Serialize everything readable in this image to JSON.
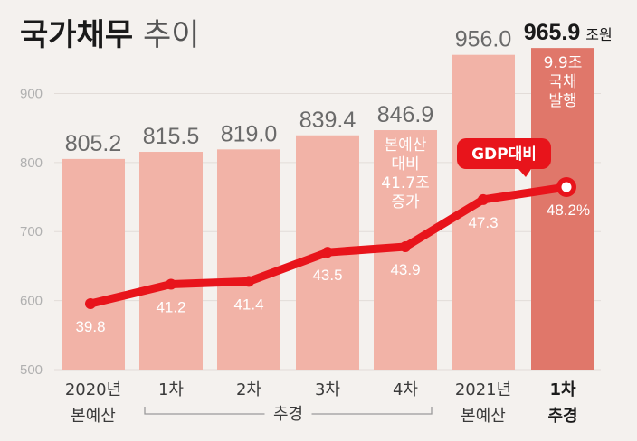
{
  "title": {
    "main": "국가채무",
    "sub": "추이"
  },
  "colors": {
    "bar": "#f2b3a7",
    "bar_highlight": "#e0776a",
    "line": "#e8141b",
    "background": "#f4f1ee"
  },
  "chart_data": {
    "type": "bar",
    "ylim": [
      500,
      970
    ],
    "yticks": [
      "500",
      "600",
      "700",
      "800",
      "900"
    ],
    "categories": [
      {
        "line1": "2020년",
        "line2": "본예산"
      },
      {
        "line1": "1차",
        "line2": ""
      },
      {
        "line1": "2차",
        "line2": ""
      },
      {
        "line1": "3차",
        "line2": ""
      },
      {
        "line1": "4차",
        "line2": ""
      },
      {
        "line1": "2021년",
        "line2": "본예산"
      },
      {
        "line1": "1차",
        "line2": "추경"
      }
    ],
    "group_label": "추경",
    "series": [
      {
        "values": [
          805.2,
          815.5,
          819.0,
          839.4,
          846.9,
          956.0,
          965.9
        ],
        "labels": [
          "805.2",
          "815.5",
          "819.0",
          "839.4",
          "846.9",
          "956.0",
          "965.9"
        ],
        "unit": "조원"
      },
      {
        "name": "GDP대비",
        "values": [
          39.8,
          41.2,
          41.4,
          43.5,
          43.9,
          47.3,
          48.2
        ],
        "labels": [
          "39.8",
          "41.2",
          "41.4",
          "43.5",
          "43.9",
          "47.3",
          "48.2%"
        ]
      }
    ],
    "annotations": [
      {
        "category_index": 4,
        "lines": [
          "본예산",
          "대비",
          "41.7조",
          "증가"
        ]
      },
      {
        "category_index": 6,
        "lines": [
          "9.9조",
          "국채",
          "발행"
        ]
      }
    ]
  }
}
